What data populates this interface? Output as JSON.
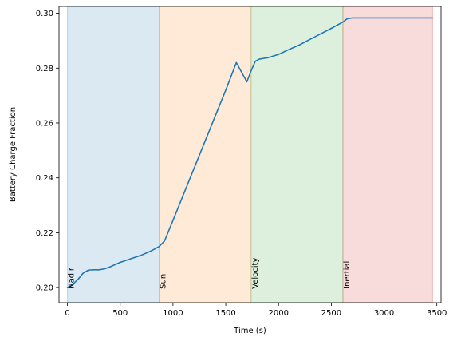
{
  "chart_data": {
    "type": "line",
    "title": "",
    "xlabel": "Time (s)",
    "ylabel": "Battery Charge Fraction",
    "xlim": [
      -80,
      3540
    ],
    "ylim": [
      0.1945,
      0.3025
    ],
    "xticks": [
      0,
      500,
      1000,
      1500,
      2000,
      2500,
      3000,
      3500
    ],
    "yticks": [
      0.2,
      0.22,
      0.24,
      0.26,
      0.28,
      0.3
    ],
    "grid": false,
    "line_color": "#1f77b4",
    "bands": [
      {
        "label": "Nadir",
        "start": 0,
        "end": 870,
        "color": "#1f77b4"
      },
      {
        "label": "Sun",
        "start": 870,
        "end": 1740,
        "color": "#ff7f0e"
      },
      {
        "label": "Velocity",
        "start": 1740,
        "end": 2610,
        "color": "#2ca02c"
      },
      {
        "label": "Inertial",
        "start": 2610,
        "end": 3460,
        "color": "#d62728"
      }
    ],
    "series": [
      {
        "x": [
          0,
          50,
          100,
          150,
          200,
          250,
          300,
          350,
          400,
          500,
          600,
          700,
          800,
          870,
          920,
          1000,
          1100,
          1200,
          1300,
          1400,
          1500,
          1600,
          1700,
          1740,
          1780,
          1820,
          1900,
          2000,
          2100,
          2200,
          2300,
          2400,
          2500,
          2610,
          2650,
          2700,
          3000,
          3460
        ],
        "y": [
          0.2,
          0.2012,
          0.203,
          0.2053,
          0.2064,
          0.2065,
          0.2065,
          0.2068,
          0.2075,
          0.2092,
          0.2105,
          0.2118,
          0.2135,
          0.215,
          0.217,
          0.2245,
          0.234,
          0.2435,
          0.253,
          0.2625,
          0.272,
          0.282,
          0.275,
          0.279,
          0.2825,
          0.2833,
          0.2838,
          0.285,
          0.2868,
          0.2885,
          0.2905,
          0.2925,
          0.2945,
          0.2968,
          0.298,
          0.2983,
          0.2983,
          0.2983
        ]
      }
    ]
  }
}
